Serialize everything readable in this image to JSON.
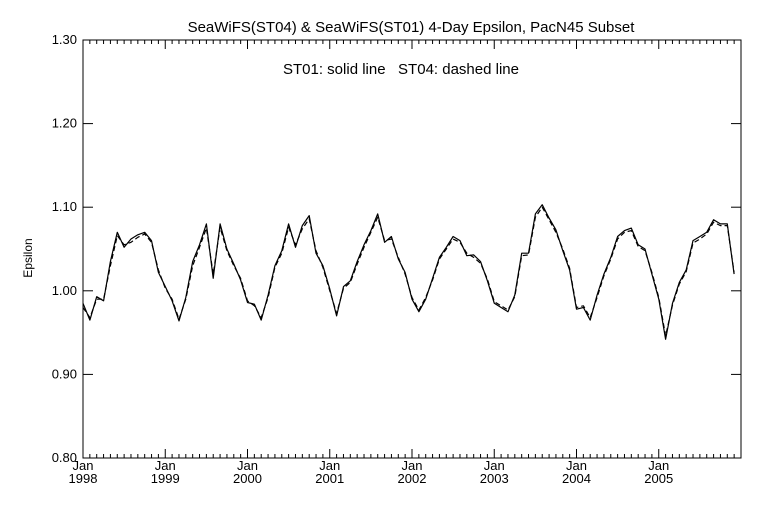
{
  "chart_data": {
    "type": "line",
    "title": "SeaWiFS(ST04) & SeaWiFS(ST01) 4-Day Epsilon, PacN45 Subset",
    "annotation": "ST01: solid line   ST04: dashed line",
    "xlabel": "",
    "ylabel": "Epsilon",
    "xlim": [
      "1998-01",
      "2005-12"
    ],
    "ylim": [
      0.8,
      1.3
    ],
    "yticks": [
      "0.80",
      "0.90",
      "1.00",
      "1.10",
      "1.20",
      "1.30"
    ],
    "xticks": [
      {
        "month": "Jan",
        "year": "1998",
        "date": "1998-01"
      },
      {
        "month": "Jan",
        "year": "1999",
        "date": "1999-01"
      },
      {
        "month": "Jan",
        "year": "2000",
        "date": "2000-01"
      },
      {
        "month": "Jan",
        "year": "2001",
        "date": "2001-01"
      },
      {
        "month": "Jan",
        "year": "2002",
        "date": "2002-01"
      },
      {
        "month": "Jan",
        "year": "2003",
        "date": "2003-01"
      },
      {
        "month": "Jan",
        "year": "2004",
        "date": "2004-01"
      },
      {
        "month": "Jan",
        "year": "2005",
        "date": "2005-01"
      }
    ],
    "grid": false,
    "legend": "none",
    "series": [
      {
        "style": "solid",
        "x": [
          "1998-01",
          "1998-02",
          "1998-03",
          "1998-04",
          "1998-05",
          "1998-06",
          "1998-07",
          "1998-08",
          "1998-09",
          "1998-10",
          "1998-11",
          "1998-12",
          "1999-01",
          "1999-02",
          "1999-03",
          "1999-04",
          "1999-05",
          "1999-06",
          "1999-07",
          "1999-08",
          "1999-09",
          "1999-10",
          "1999-11",
          "1999-12",
          "2000-01",
          "2000-02",
          "2000-03",
          "2000-04",
          "2000-05",
          "2000-06",
          "2000-07",
          "2000-08",
          "2000-09",
          "2000-10",
          "2000-11",
          "2000-12",
          "2001-01",
          "2001-02",
          "2001-03",
          "2001-04",
          "2001-05",
          "2001-06",
          "2001-07",
          "2001-08",
          "2001-09",
          "2001-10",
          "2001-11",
          "2001-12",
          "2002-01",
          "2002-02",
          "2002-03",
          "2002-04",
          "2002-05",
          "2002-06",
          "2002-07",
          "2002-08",
          "2002-09",
          "2002-10",
          "2002-11",
          "2002-12",
          "2003-01",
          "2003-02",
          "2003-03",
          "2003-04",
          "2003-05",
          "2003-06",
          "2003-07",
          "2003-08",
          "2003-09",
          "2003-10",
          "2003-11",
          "2003-12",
          "2004-01",
          "2004-02",
          "2004-03",
          "2004-04",
          "2004-05",
          "2004-06",
          "2004-07",
          "2004-08",
          "2004-09",
          "2004-10",
          "2004-11",
          "2004-12",
          "2005-01",
          "2005-02",
          "2005-03",
          "2005-04",
          "2005-05",
          "2005-06",
          "2005-07",
          "2005-08",
          "2005-09",
          "2005-10",
          "2005-11",
          "2005-12"
        ],
        "y": [
          0.985,
          0.965,
          0.993,
          0.988,
          1.035,
          1.07,
          1.052,
          1.062,
          1.067,
          1.07,
          1.06,
          1.022,
          1.005,
          0.988,
          0.964,
          0.992,
          1.035,
          1.055,
          1.08,
          1.015,
          1.08,
          1.05,
          1.032,
          1.013,
          0.986,
          0.984,
          0.965,
          0.995,
          1.03,
          1.048,
          1.08,
          1.052,
          1.078,
          1.09,
          1.045,
          1.03,
          1.002,
          0.97,
          1.005,
          1.012,
          1.035,
          1.055,
          1.072,
          1.092,
          1.058,
          1.065,
          1.038,
          1.022,
          0.99,
          0.975,
          0.99,
          1.015,
          1.04,
          1.052,
          1.065,
          1.06,
          1.042,
          1.043,
          1.035,
          1.012,
          0.985,
          0.98,
          0.975,
          0.995,
          1.045,
          1.045,
          1.092,
          1.103,
          1.087,
          1.073,
          1.048,
          1.025,
          0.978,
          0.98,
          0.965,
          0.995,
          1.02,
          1.04,
          1.065,
          1.072,
          1.075,
          1.055,
          1.05,
          1.02,
          0.99,
          0.942,
          0.985,
          1.01,
          1.025,
          1.06,
          1.065,
          1.07,
          1.085,
          1.08,
          1.08,
          1.02
        ]
      },
      {
        "style": "dashed",
        "x": [
          "1998-01",
          "1998-02",
          "1998-03",
          "1998-04",
          "1998-05",
          "1998-06",
          "1998-07",
          "1998-08",
          "1998-09",
          "1998-10",
          "1998-11",
          "1998-12",
          "1999-01",
          "1999-02",
          "1999-03",
          "1999-04",
          "1999-05",
          "1999-06",
          "1999-07",
          "1999-08",
          "1999-09",
          "1999-10",
          "1999-11",
          "1999-12",
          "2000-01",
          "2000-02",
          "2000-03",
          "2000-04",
          "2000-05",
          "2000-06",
          "2000-07",
          "2000-08",
          "2000-09",
          "2000-10",
          "2000-11",
          "2000-12",
          "2001-01",
          "2001-02",
          "2001-03",
          "2001-04",
          "2001-05",
          "2001-06",
          "2001-07",
          "2001-08",
          "2001-09",
          "2001-10",
          "2001-11",
          "2001-12",
          "2002-01",
          "2002-02",
          "2002-03",
          "2002-04",
          "2002-05",
          "2002-06",
          "2002-07",
          "2002-08",
          "2002-09",
          "2002-10",
          "2002-11",
          "2002-12",
          "2003-01",
          "2003-02",
          "2003-03",
          "2003-04",
          "2003-05",
          "2003-06",
          "2003-07",
          "2003-08",
          "2003-09",
          "2003-10",
          "2003-11",
          "2003-12",
          "2004-01",
          "2004-02",
          "2004-03",
          "2004-04",
          "2004-05",
          "2004-06",
          "2004-07",
          "2004-08",
          "2004-09",
          "2004-10",
          "2004-11",
          "2004-12",
          "2005-01",
          "2005-02",
          "2005-03",
          "2005-04",
          "2005-05",
          "2005-06",
          "2005-07",
          "2005-08",
          "2005-09",
          "2005-10",
          "2005-11",
          "2005-12"
        ],
        "y": [
          0.98,
          0.968,
          0.99,
          0.99,
          1.03,
          1.066,
          1.055,
          1.058,
          1.064,
          1.068,
          1.058,
          1.025,
          1.003,
          0.99,
          0.966,
          0.99,
          1.03,
          1.052,
          1.075,
          1.02,
          1.076,
          1.048,
          1.03,
          1.015,
          0.988,
          0.982,
          0.968,
          0.992,
          1.028,
          1.045,
          1.076,
          1.055,
          1.074,
          1.086,
          1.048,
          1.028,
          1.0,
          0.973,
          1.003,
          1.01,
          1.032,
          1.052,
          1.07,
          1.088,
          1.06,
          1.062,
          1.04,
          1.02,
          0.992,
          0.977,
          0.992,
          1.013,
          1.038,
          1.05,
          1.062,
          1.058,
          1.045,
          1.04,
          1.033,
          1.014,
          0.987,
          0.982,
          0.977,
          0.993,
          1.042,
          1.043,
          1.088,
          1.1,
          1.085,
          1.07,
          1.05,
          1.027,
          0.98,
          0.982,
          0.968,
          0.992,
          1.018,
          1.038,
          1.062,
          1.07,
          1.072,
          1.053,
          1.048,
          1.022,
          0.992,
          0.946,
          0.983,
          1.008,
          1.023,
          1.057,
          1.062,
          1.068,
          1.082,
          1.078,
          1.078,
          1.022
        ]
      }
    ]
  }
}
